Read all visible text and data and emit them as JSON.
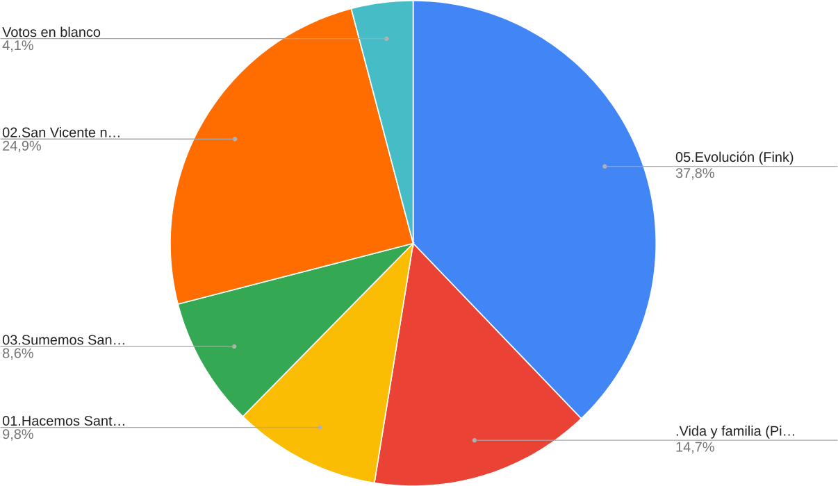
{
  "chart_data": {
    "type": "pie",
    "categories": [
      "05.Evolución (Fink)",
      ".Vida y familia (Pi…",
      "01.Hacemos Sant…",
      "03.Sumemos San…",
      "02.San Vicente n…",
      "Votos en blanco"
    ],
    "values": [
      37.8,
      14.7,
      9.8,
      8.6,
      24.9,
      4.1
    ],
    "value_labels": [
      "37,8%",
      "14,7%",
      "9,8%",
      "8,6%",
      "24,9%",
      "4,1%"
    ],
    "colors": [
      "#4285f4",
      "#ea4335",
      "#fbbc04",
      "#34a853",
      "#ff6d01",
      "#46bdc6"
    ]
  }
}
